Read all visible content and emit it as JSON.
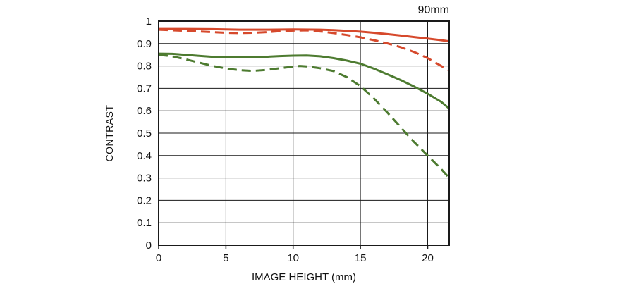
{
  "chart_data": {
    "type": "line",
    "title": "90mm",
    "xlabel": "IMAGE HEIGHT (mm)",
    "ylabel": "CONTRAST",
    "xlim": [
      0,
      21.6
    ],
    "ylim": [
      0,
      1
    ],
    "x_ticks": [
      0,
      5,
      10,
      15,
      20
    ],
    "y_ticks": [
      0,
      0.1,
      0.2,
      0.3,
      0.4,
      0.5,
      0.6,
      0.7,
      0.8,
      0.9,
      1
    ],
    "grid": true,
    "legend": "none",
    "colors": {
      "red": "#d6492c",
      "green": "#4d7b30"
    },
    "series": [
      {
        "name": "red-solid",
        "color": "#d6492c",
        "style": "solid",
        "points": [
          [
            0,
            0.965
          ],
          [
            2,
            0.965
          ],
          [
            4,
            0.964
          ],
          [
            6,
            0.962
          ],
          [
            8,
            0.962
          ],
          [
            10,
            0.963
          ],
          [
            12,
            0.962
          ],
          [
            13,
            0.96
          ],
          [
            14,
            0.957
          ],
          [
            15,
            0.953
          ],
          [
            16,
            0.948
          ],
          [
            17,
            0.942
          ],
          [
            18,
            0.936
          ],
          [
            19,
            0.929
          ],
          [
            20,
            0.922
          ],
          [
            21,
            0.915
          ],
          [
            21.6,
            0.91
          ]
        ]
      },
      {
        "name": "red-dashed",
        "color": "#d6492c",
        "style": "dashed",
        "points": [
          [
            0,
            0.962
          ],
          [
            2,
            0.957
          ],
          [
            4,
            0.951
          ],
          [
            5,
            0.948
          ],
          [
            6,
            0.947
          ],
          [
            7,
            0.948
          ],
          [
            8,
            0.951
          ],
          [
            9,
            0.955
          ],
          [
            10,
            0.958
          ],
          [
            11,
            0.959
          ],
          [
            12,
            0.954
          ],
          [
            13,
            0.947
          ],
          [
            14,
            0.938
          ],
          [
            15,
            0.928
          ],
          [
            16,
            0.915
          ],
          [
            17,
            0.901
          ],
          [
            18,
            0.884
          ],
          [
            19,
            0.862
          ],
          [
            20,
            0.835
          ],
          [
            21,
            0.8
          ],
          [
            21.6,
            0.78
          ]
        ]
      },
      {
        "name": "green-solid",
        "color": "#4d7b30",
        "style": "solid",
        "points": [
          [
            0,
            0.855
          ],
          [
            1,
            0.854
          ],
          [
            2,
            0.85
          ],
          [
            3,
            0.845
          ],
          [
            4,
            0.841
          ],
          [
            5,
            0.839
          ],
          [
            6,
            0.838
          ],
          [
            7,
            0.839
          ],
          [
            8,
            0.841
          ],
          [
            9,
            0.844
          ],
          [
            10,
            0.846
          ],
          [
            11,
            0.847
          ],
          [
            12,
            0.843
          ],
          [
            13,
            0.835
          ],
          [
            14,
            0.824
          ],
          [
            15,
            0.81
          ],
          [
            16,
            0.788
          ],
          [
            17,
            0.763
          ],
          [
            18,
            0.737
          ],
          [
            19,
            0.708
          ],
          [
            20,
            0.676
          ],
          [
            21,
            0.64
          ],
          [
            21.6,
            0.61
          ]
        ]
      },
      {
        "name": "green-dashed",
        "color": "#4d7b30",
        "style": "dashed",
        "points": [
          [
            0,
            0.85
          ],
          [
            1,
            0.843
          ],
          [
            2,
            0.83
          ],
          [
            3,
            0.815
          ],
          [
            4,
            0.8
          ],
          [
            5,
            0.789
          ],
          [
            6,
            0.781
          ],
          [
            7,
            0.778
          ],
          [
            8,
            0.782
          ],
          [
            9,
            0.79
          ],
          [
            10,
            0.797
          ],
          [
            10.5,
            0.8
          ],
          [
            11,
            0.798
          ],
          [
            12,
            0.79
          ],
          [
            13,
            0.777
          ],
          [
            14,
            0.75
          ],
          [
            15,
            0.71
          ],
          [
            16,
            0.655
          ],
          [
            17,
            0.592
          ],
          [
            18,
            0.526
          ],
          [
            19,
            0.46
          ],
          [
            20,
            0.4
          ],
          [
            21,
            0.34
          ],
          [
            21.6,
            0.3
          ]
        ]
      }
    ]
  },
  "layout_hint": {
    "note": "MTF contrast chart, no legend, black grid, solid = sagittal, dashed = meridional"
  }
}
